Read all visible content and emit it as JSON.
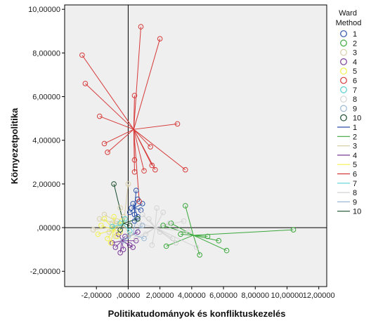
{
  "chart_data": {
    "type": "scatter",
    "xlabel": "Politikatudományok és konfliktuskezelés",
    "ylabel": "Környezetpolitika",
    "xlim": [
      -4.0,
      12.5
    ],
    "ylim": [
      -2.7,
      10.2
    ],
    "x_ticks": [
      -2,
      0,
      2,
      4,
      6,
      8,
      10,
      12
    ],
    "y_ticks": [
      -2,
      0,
      2,
      4,
      6,
      8,
      10
    ],
    "x_tick_labels": [
      "-2,00000",
      ",00000",
      "2,00000",
      "4,00000",
      "6,00000",
      "8,00000",
      "10,00000",
      "12,00000"
    ],
    "y_tick_labels": [
      "-2,00000",
      ",00000",
      "2,00000",
      "4,00000",
      "6,00000",
      "8,00000",
      "10,00000"
    ],
    "reference_lines": {
      "x": 0,
      "y": 0
    },
    "plot_background": "#efefef",
    "legend": {
      "title_line1": "Ward",
      "title_line2": "Method",
      "placement": "right",
      "marker_labels": [
        "1",
        "2",
        "3",
        "4",
        "5",
        "6",
        "7",
        "8",
        "9",
        "10"
      ],
      "line_labels": [
        "1",
        "2",
        "3",
        "4",
        "5",
        "6",
        "7",
        "8",
        "9",
        "10"
      ]
    },
    "series": [
      {
        "colors": "#2b4fa8",
        "centroid": [
          0.4,
          0.9
        ],
        "points": [
          [
            0.5,
            1.7
          ],
          [
            0.6,
            1.3
          ],
          [
            0.2,
            0.9
          ],
          [
            0.4,
            0.6
          ],
          [
            0.8,
            0.8
          ],
          [
            0.3,
            1.1
          ],
          [
            0.6,
            0.5
          ],
          [
            0.1,
            0.7
          ],
          [
            0.9,
            1.1
          ],
          [
            0.4,
            0.3
          ]
        ]
      },
      {
        "colors": "#3aa83a",
        "centroid": [
          4.1,
          -0.35
        ],
        "points": [
          [
            10.4,
            -0.1
          ],
          [
            6.2,
            -1.05
          ],
          [
            5.7,
            -0.6
          ],
          [
            4.5,
            -1.25
          ],
          [
            3.6,
            1.0
          ],
          [
            2.4,
            -0.85
          ],
          [
            2.2,
            0.1
          ],
          [
            3.3,
            -0.3
          ],
          [
            2.7,
            0.2
          ],
          [
            5.0,
            -0.4
          ]
        ]
      },
      {
        "colors": "#d8d0a8",
        "centroid": [
          -0.3,
          0.1
        ],
        "points": [
          [
            -2.2,
            -0.1
          ],
          [
            -1.5,
            0.6
          ],
          [
            -1.0,
            0.2
          ],
          [
            -0.8,
            -0.4
          ],
          [
            -0.5,
            0.9
          ],
          [
            -1.2,
            -0.2
          ],
          [
            0.0,
            2.0
          ],
          [
            -0.3,
            0.5
          ],
          [
            -0.7,
            0.3
          ],
          [
            0.1,
            -0.3
          ],
          [
            -1.8,
            0.4
          ]
        ]
      },
      {
        "colors": "#7a3a98",
        "centroid": [
          -0.4,
          -0.6
        ],
        "points": [
          [
            -0.5,
            -1.15
          ],
          [
            0.3,
            -0.9
          ],
          [
            -1.0,
            -0.7
          ],
          [
            -0.2,
            -0.4
          ],
          [
            0.5,
            -0.6
          ],
          [
            -0.8,
            -0.9
          ],
          [
            0.1,
            -0.8
          ],
          [
            -0.6,
            -0.3
          ],
          [
            0.6,
            -0.2
          ],
          [
            -0.3,
            -1.0
          ]
        ]
      },
      {
        "colors": "#f2f24a",
        "centroid": [
          -0.9,
          -0.1
        ],
        "points": [
          [
            -1.7,
            0.1
          ],
          [
            -1.3,
            -0.5
          ],
          [
            -0.9,
            0.5
          ],
          [
            -0.5,
            -0.2
          ],
          [
            -1.1,
            -0.7
          ],
          [
            -1.5,
            0.4
          ],
          [
            -0.4,
            0.3
          ],
          [
            -0.7,
            -0.4
          ],
          [
            -1.9,
            -0.3
          ]
        ]
      },
      {
        "colors": "#d63a3a",
        "centroid": [
          0.35,
          4.5
        ],
        "points": [
          [
            -2.9,
            7.9
          ],
          [
            -2.7,
            6.6
          ],
          [
            -1.8,
            5.1
          ],
          [
            -1.5,
            3.85
          ],
          [
            -1.3,
            3.45
          ],
          [
            0.8,
            9.2
          ],
          [
            2.0,
            8.65
          ],
          [
            0.4,
            6.05
          ],
          [
            3.1,
            4.75
          ],
          [
            3.6,
            2.65
          ],
          [
            1.4,
            3.7
          ],
          [
            1.7,
            2.65
          ],
          [
            1.5,
            2.85
          ],
          [
            1.0,
            2.6
          ],
          [
            0.4,
            3.1
          ],
          [
            0.4,
            2.55
          ],
          [
            0.7,
            1.2
          ]
        ]
      },
      {
        "colors": "#59cfd0",
        "centroid": [
          -0.3,
          0.15
        ],
        "points": [
          [
            -1.0,
            0.05
          ],
          [
            -0.5,
            0.2
          ],
          [
            0.1,
            -0.15
          ],
          [
            -0.2,
            0.4
          ]
        ]
      },
      {
        "colors": "#d4d4d4",
        "centroid": [
          1.7,
          0.0
        ],
        "points": [
          [
            4.3,
            -0.9
          ],
          [
            3.5,
            0.3
          ],
          [
            2.8,
            -0.5
          ],
          [
            2.2,
            0.7
          ],
          [
            1.5,
            -0.8
          ],
          [
            0.9,
            0.6
          ],
          [
            1.1,
            -0.3
          ],
          [
            2.6,
            0.2
          ],
          [
            3.0,
            -0.7
          ],
          [
            1.8,
            0.9
          ],
          [
            0.5,
            -0.5
          ],
          [
            2.0,
            -0.2
          ],
          [
            1.3,
            0.4
          ],
          [
            3.8,
            -0.2
          ],
          [
            0.7,
            0.2
          ]
        ]
      },
      {
        "colors": "#9ab8d4",
        "centroid": [
          0.3,
          -0.3
        ],
        "points": [
          [
            1.0,
            -0.5
          ],
          [
            0.5,
            0.4
          ],
          [
            -0.3,
            -0.6
          ],
          [
            0.9,
            0.1
          ],
          [
            0.0,
            -0.4
          ]
        ]
      },
      {
        "colors": "#1a4d2e",
        "centroid": [
          -0.3,
          0.2
        ],
        "points": [
          [
            -0.9,
            2.0
          ],
          [
            0.6,
            0.4
          ],
          [
            0.1,
            0.1
          ],
          [
            -0.5,
            -0.1
          ]
        ]
      }
    ]
  }
}
